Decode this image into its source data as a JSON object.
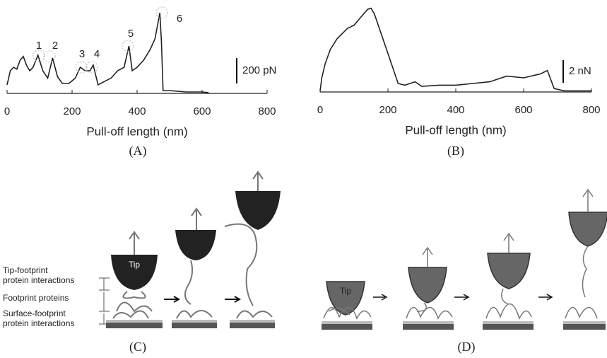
{
  "chart_data": [
    {
      "type": "line",
      "x_label": "Pull-off length (nm)",
      "color": "#222",
      "x": [
        0,
        10,
        20,
        30,
        40,
        50,
        60,
        70,
        80,
        95,
        110,
        125,
        140,
        155,
        170,
        190,
        210,
        225,
        240,
        255,
        265,
        280,
        300,
        320,
        340,
        360,
        375,
        385,
        400,
        420,
        440,
        455,
        470,
        475,
        480,
        500,
        550,
        600,
        620
      ],
      "values": [
        67,
        178,
        205,
        190,
        260,
        290,
        220,
        178,
        205,
        300,
        178,
        120,
        278,
        133,
        78,
        78,
        120,
        205,
        178,
        178,
        222,
        67,
        94,
        120,
        178,
        205,
        372,
        178,
        205,
        260,
        344,
        428,
        633,
        400,
        22,
        22,
        11,
        11,
        6
      ],
      "xlim": [
        0,
        800
      ],
      "xticks": [
        0,
        200,
        400,
        600,
        800
      ],
      "ylim": [
        0,
        700
      ],
      "scale_bar": {
        "value": 200,
        "label": "200 pN"
      },
      "annotations": [
        "1",
        "2",
        "3",
        "4",
        "5",
        "6"
      ]
    },
    {
      "type": "line",
      "x_label": "Pull-off length (nm)",
      "color": "#222",
      "x": [
        0,
        5,
        15,
        30,
        50,
        80,
        100,
        120,
        140,
        150,
        160,
        200,
        230,
        250,
        280,
        300,
        350,
        400,
        450,
        500,
        550,
        600,
        650,
        670,
        690,
        720,
        800
      ],
      "values": [
        0.1,
        1.25,
        2.5,
        3.75,
        4.7,
        5.6,
        5.9,
        6.6,
        7.3,
        7.4,
        6.9,
        3.4,
        0.75,
        0.6,
        0.9,
        0.5,
        0.6,
        0.6,
        0.75,
        0.9,
        1.4,
        1.25,
        1.6,
        1.9,
        0.3,
        0.1,
        0.1
      ],
      "xlim": [
        0,
        800
      ],
      "xticks": [
        0,
        200,
        400,
        600,
        800
      ],
      "ylim": [
        0,
        8
      ],
      "scale_bar": {
        "value": 2,
        "label": "2 nN"
      }
    }
  ],
  "captions": [
    "(A)",
    "(B)",
    "(C)",
    "(D)"
  ],
  "diagram_c": {
    "tip": "Tip",
    "labels": [
      [
        "Tip-footprint",
        "protein interactions"
      ],
      [
        "Footprint proteins"
      ],
      [
        "Surface-footprint",
        "protein interactions"
      ]
    ]
  },
  "diagram_d": {
    "tip": "Tip"
  }
}
